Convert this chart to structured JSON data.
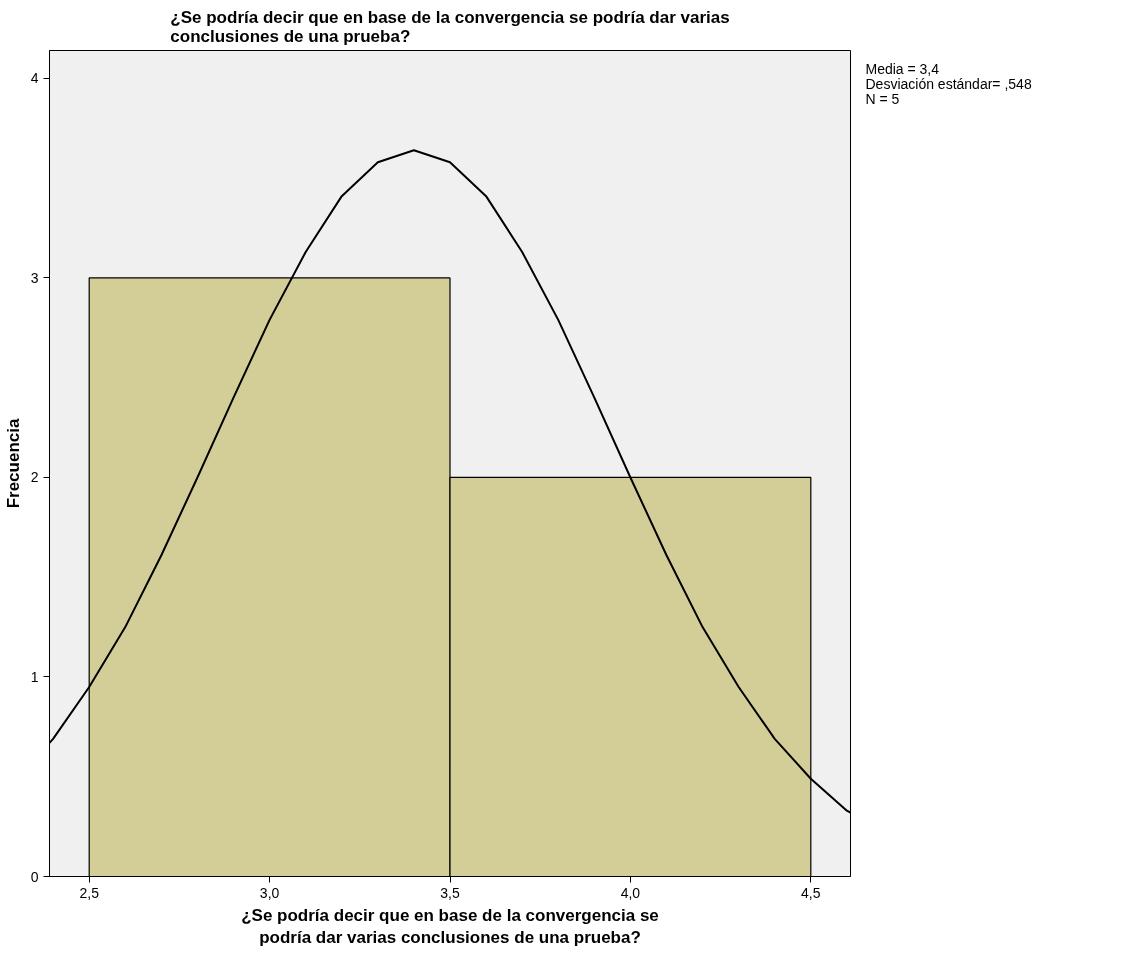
{
  "chart_data": {
    "type": "histogram",
    "title": "¿Se podría decir que en base de la convergencia se podría dar varias conclusiones de una prueba?",
    "xlabel": "¿Se podría decir que en base de la convergencia se podría dar varias conclusiones de una prueba?",
    "ylabel": "Frecuencia",
    "bins": [
      2.5,
      3.5,
      4.5
    ],
    "values": [
      3,
      2
    ],
    "color": "#d3ce98",
    "series": [
      {
        "type": "line",
        "color": "#000000",
        "x": [
          2.39,
          2.4,
          2.5,
          2.6,
          2.7,
          2.8,
          2.9,
          3.0,
          3.1,
          3.2,
          3.3,
          3.4,
          3.5,
          3.6,
          3.7,
          3.8,
          3.9,
          4.0,
          4.1,
          4.2,
          4.3,
          4.4,
          4.5,
          4.6,
          4.61
        ],
        "values": [
          0.67,
          0.69,
          0.95,
          1.25,
          1.61,
          2.0,
          2.4,
          2.79,
          3.13,
          3.41,
          3.58,
          3.64,
          3.58,
          3.41,
          3.13,
          2.79,
          2.4,
          2.0,
          1.61,
          1.25,
          0.95,
          0.69,
          0.49,
          0.33,
          0.32
        ]
      }
    ],
    "xlim": [
      2.39,
      4.61
    ],
    "ylim": [
      0,
      4.14
    ],
    "xticks": [
      {
        "value": 2.5,
        "label": "2,5"
      },
      {
        "value": 3.0,
        "label": "3,0"
      },
      {
        "value": 3.5,
        "label": "3,5"
      },
      {
        "value": 4.0,
        "label": "4,0"
      },
      {
        "value": 4.5,
        "label": "4,5"
      }
    ],
    "yticks": [
      0,
      1,
      2,
      3,
      4
    ],
    "grid": false,
    "annotations": [
      "Media = 3,4",
      "Desviación estándar= ,548",
      "N = 5"
    ]
  }
}
